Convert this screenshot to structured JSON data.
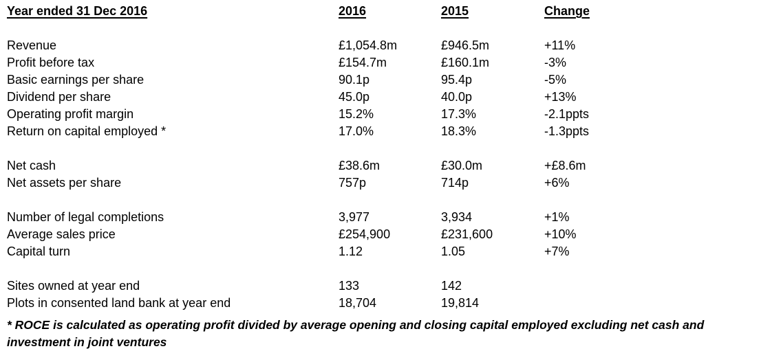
{
  "page": {
    "background_color": "#ffffff",
    "text_color": "#000000"
  },
  "table": {
    "header": {
      "label": "Year ended 31 Dec 2016",
      "col_2016": "2016",
      "col_2015": "2015",
      "col_change": "Change"
    },
    "groups": [
      {
        "rows": [
          {
            "label": "Revenue",
            "y2016": "£1,054.8m",
            "y2015": "£946.5m",
            "change": "+11%"
          },
          {
            "label": "Profit before tax",
            "y2016": "£154.7m",
            "y2015": "£160.1m",
            "change": "-3%"
          },
          {
            "label": "Basic earnings per share",
            "y2016": "90.1p",
            "y2015": "95.4p",
            "change": "-5%"
          },
          {
            "label": "Dividend per share",
            "y2016": "45.0p",
            "y2015": "40.0p",
            "change": "+13%"
          },
          {
            "label": "Operating profit margin",
            "y2016": "15.2%",
            "y2015": "17.3%",
            "change": "-2.1ppts"
          },
          {
            "label": "Return on capital employed *",
            "y2016": "17.0%",
            "y2015": "18.3%",
            "change": "-1.3ppts"
          }
        ]
      },
      {
        "rows": [
          {
            "label": "Net cash",
            "y2016": "£38.6m",
            "y2015": "£30.0m",
            "change": "+£8.6m"
          },
          {
            "label": "Net assets per share",
            "y2016": "757p",
            "y2015": "714p",
            "change": "+6%"
          }
        ]
      },
      {
        "rows": [
          {
            "label": "Number of legal completions",
            "y2016": "3,977",
            "y2015": "3,934",
            "change": "+1%"
          },
          {
            "label": "Average sales price",
            "y2016": "£254,900",
            "y2015": "£231,600",
            "change": "+10%"
          },
          {
            "label": "Capital turn",
            "y2016": "1.12",
            "y2015": "1.05",
            "change": "+7%"
          }
        ]
      },
      {
        "rows": [
          {
            "label": "Sites owned at year end",
            "y2016": "133",
            "y2015": "142",
            "change": ""
          },
          {
            "label": "Plots in consented land bank at year end",
            "y2016": "18,704",
            "y2015": "19,814",
            "change": ""
          }
        ]
      }
    ]
  },
  "footnote": "* ROCE is calculated as operating profit divided by average opening and closing capital employed excluding net cash and investment in joint ventures"
}
